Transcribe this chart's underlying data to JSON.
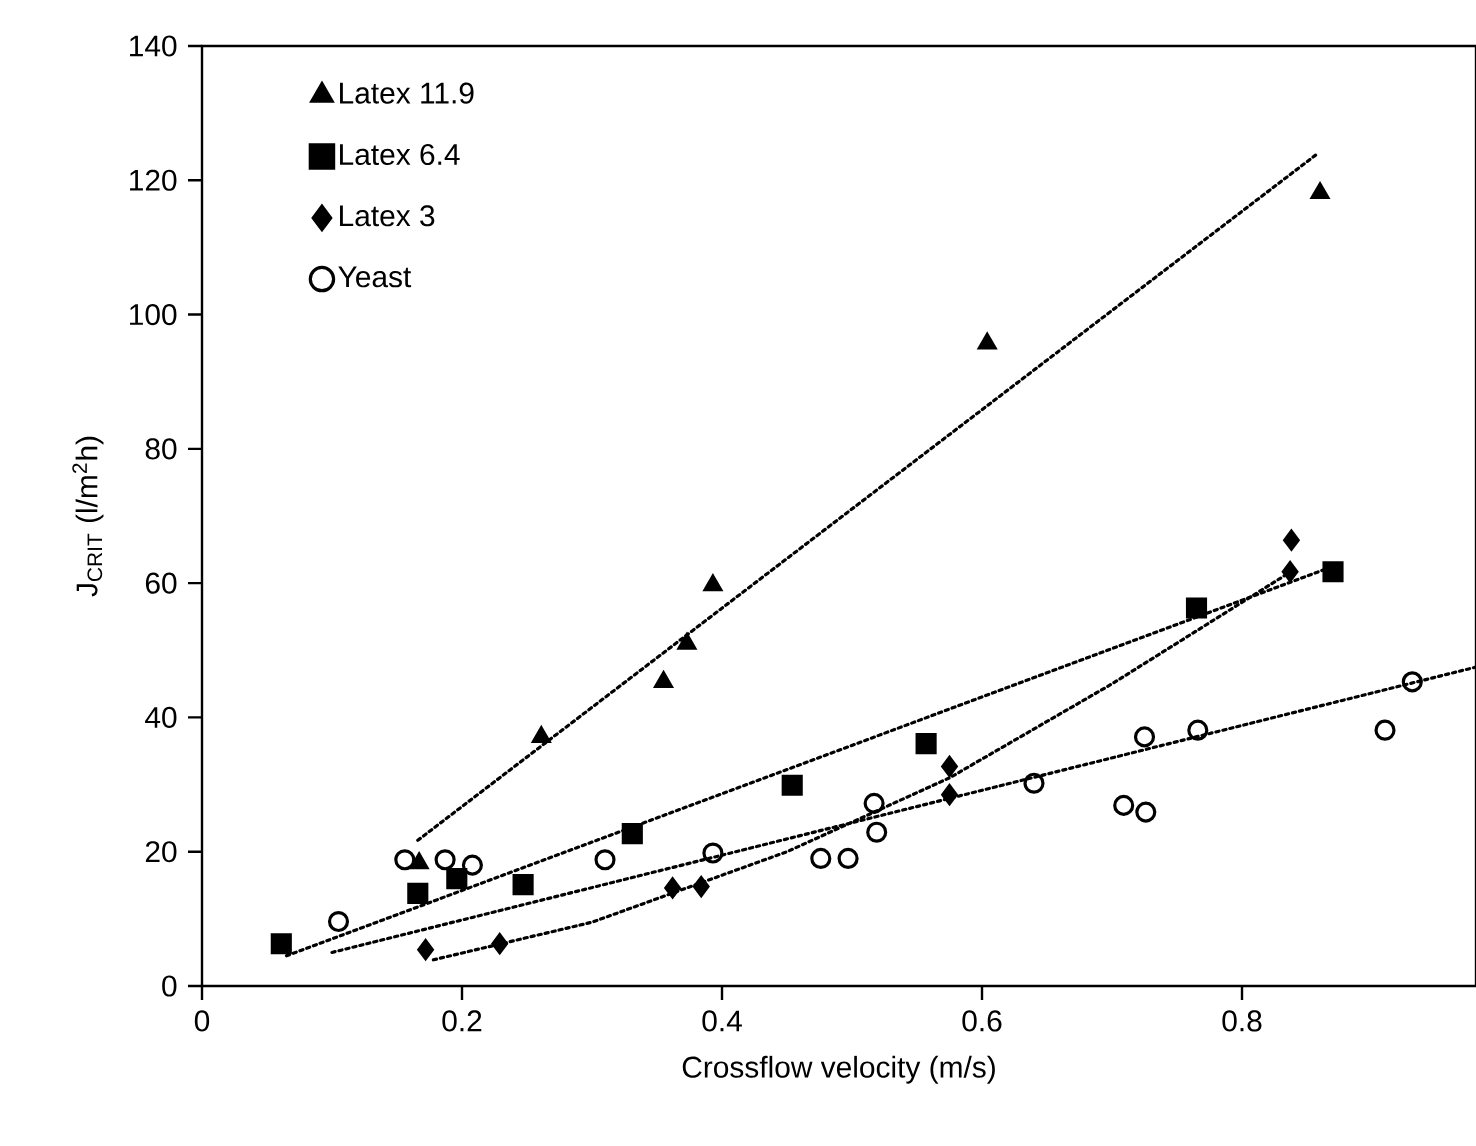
{
  "chart_data": {
    "type": "scatter",
    "xlabel": "Crossflow velocity (m/s)",
    "ylabel": "J$_{CRIT}$ (l/m$^{2}$h)",
    "xlim": [
      0,
      0.98
    ],
    "ylim": [
      0,
      140
    ],
    "xticks": [
      0,
      0.2,
      0.4,
      0.6,
      0.8
    ],
    "yticks": [
      0,
      20,
      40,
      60,
      80,
      100,
      120,
      140
    ],
    "legend": "top left",
    "grid": false,
    "series": [
      {
        "name": "Latex 11.9",
        "marker": "triangle",
        "color": "#000000",
        "x": [
          0.167,
          0.261,
          0.355,
          0.373,
          0.393,
          0.604,
          0.86
        ],
        "values": [
          18.3,
          37.1,
          45.3,
          51.0,
          59.7,
          95.7,
          118.1
        ]
      },
      {
        "name": "Latex 6.4",
        "marker": "square",
        "color": "#000000",
        "x": [
          0.061,
          0.166,
          0.196,
          0.247,
          0.331,
          0.454,
          0.557,
          0.765,
          0.87
        ],
        "values": [
          6.3,
          13.8,
          16.0,
          15.1,
          22.7,
          29.9,
          36.1,
          56.3,
          61.7
        ]
      },
      {
        "name": "Latex 3",
        "marker": "diamond",
        "color": "#000000",
        "x": [
          0.172,
          0.229,
          0.362,
          0.384,
          0.575,
          0.575,
          0.838,
          0.837
        ],
        "values": [
          5.4,
          6.3,
          14.6,
          14.8,
          32.7,
          28.5,
          66.4,
          61.7
        ]
      },
      {
        "name": "Yeast",
        "marker": "circle",
        "color": "#000000",
        "x": [
          0.105,
          0.156,
          0.187,
          0.208,
          0.31,
          0.393,
          0.476,
          0.497,
          0.517,
          0.519,
          0.64,
          0.709,
          0.726,
          0.725,
          0.766,
          0.91,
          0.931
        ],
        "values": [
          9.6,
          18.8,
          18.8,
          18.0,
          18.8,
          19.8,
          19.0,
          19.0,
          27.2,
          22.9,
          30.2,
          26.9,
          25.9,
          37.1,
          38.1,
          38.1,
          45.3
        ]
      },
      {
        "type": "line",
        "marker": "none",
        "line_style": "dotted",
        "color": "#000000",
        "x": [
          0.166,
          0.857
        ],
        "values": [
          21.7,
          123.8
        ]
      },
      {
        "type": "line",
        "marker": "none",
        "line_style": "dotted",
        "color": "#000000",
        "x": [
          0.065,
          0.87
        ],
        "values": [
          4.5,
          62.5
        ]
      },
      {
        "type": "line",
        "marker": "none",
        "line_style": "dotted",
        "color": "#000000",
        "x": [
          0.178,
          0.3,
          0.45,
          0.575,
          0.7,
          0.84
        ],
        "values": [
          3.9,
          9.5,
          20,
          31,
          45,
          62
        ]
      },
      {
        "type": "line",
        "marker": "none",
        "line_style": "dotted",
        "color": "#000000",
        "x": [
          0.1,
          0.98
        ],
        "values": [
          5,
          47.5
        ]
      }
    ]
  }
}
